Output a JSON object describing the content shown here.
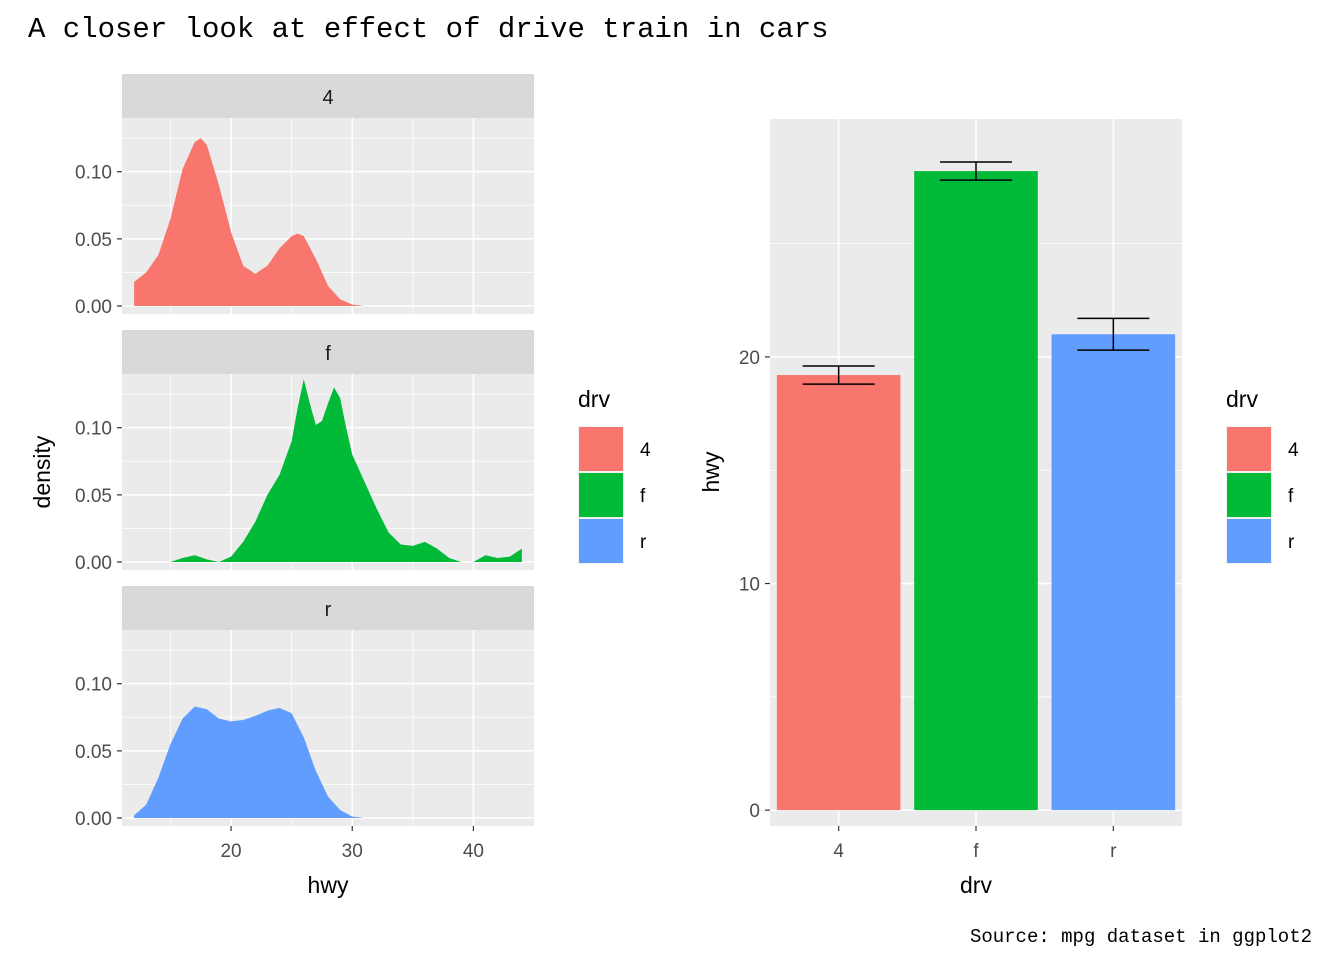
{
  "title": "A closer look at effect of drive train in cars",
  "caption": "Source: mpg dataset in ggplot2",
  "colors": {
    "4": "#F8766D",
    "f": "#00BA38",
    "r": "#619CFF",
    "panel_bg": "#EBEBEB",
    "strip_bg": "#D9D9D9",
    "grid": "#FFFFFF",
    "text": "#4D4D4D"
  },
  "chart_data": [
    {
      "type": "area",
      "facet_by": "drv",
      "xlabel": "hwy",
      "ylabel": "density",
      "xlim": [
        11,
        45
      ],
      "x_ticks": [
        20,
        30,
        40
      ],
      "y_ticks": [
        0.0,
        0.05,
        0.1
      ],
      "y_tick_labels": [
        "0.00",
        "0.05",
        "0.10"
      ],
      "ylim": [
        0,
        0.14
      ],
      "legend_title": "drv",
      "legend_position": "right",
      "series": [
        {
          "name": "4",
          "x": [
            12,
            13,
            14,
            15,
            16,
            17,
            17.5,
            18,
            19,
            20,
            21,
            22,
            23,
            24,
            25,
            25.5,
            26,
            27,
            28,
            29,
            30,
            31
          ],
          "y": [
            0.018,
            0.025,
            0.038,
            0.065,
            0.102,
            0.122,
            0.125,
            0.12,
            0.09,
            0.055,
            0.03,
            0.024,
            0.03,
            0.043,
            0.052,
            0.054,
            0.052,
            0.035,
            0.015,
            0.005,
            0.001,
            0.0
          ]
        },
        {
          "name": "f",
          "x": [
            15,
            16,
            17,
            18,
            19,
            20,
            21,
            22,
            23,
            24,
            25,
            25.5,
            26,
            26.5,
            27,
            27.5,
            28,
            28.5,
            29,
            29.5,
            30,
            31,
            32,
            33,
            34,
            35,
            36,
            37,
            38,
            39,
            40,
            41,
            42,
            43,
            44
          ],
          "y": [
            0.0,
            0.003,
            0.005,
            0.002,
            0.0,
            0.004,
            0.015,
            0.03,
            0.05,
            0.065,
            0.09,
            0.115,
            0.136,
            0.118,
            0.102,
            0.105,
            0.118,
            0.13,
            0.122,
            0.1,
            0.08,
            0.06,
            0.04,
            0.022,
            0.013,
            0.012,
            0.015,
            0.01,
            0.003,
            0.0,
            0.0,
            0.005,
            0.003,
            0.004,
            0.01
          ]
        },
        {
          "name": "r",
          "x": [
            12,
            13,
            14,
            15,
            16,
            17,
            18,
            19,
            20,
            21,
            22,
            23,
            24,
            25,
            26,
            27,
            28,
            29,
            30,
            31
          ],
          "y": [
            0.002,
            0.01,
            0.03,
            0.055,
            0.074,
            0.083,
            0.081,
            0.074,
            0.072,
            0.073,
            0.076,
            0.08,
            0.082,
            0.078,
            0.06,
            0.035,
            0.016,
            0.006,
            0.001,
            0.0
          ]
        }
      ]
    },
    {
      "type": "bar",
      "xlabel": "drv",
      "ylabel": "hwy",
      "categories": [
        "4",
        "f",
        "r"
      ],
      "values": [
        19.2,
        28.2,
        21.0
      ],
      "error_low": [
        18.8,
        27.8,
        20.3
      ],
      "error_high": [
        19.6,
        28.6,
        21.7
      ],
      "ylim": [
        -0.7,
        30.5
      ],
      "y_ticks": [
        0,
        10,
        20
      ],
      "legend_title": "drv",
      "legend_position": "right"
    }
  ]
}
